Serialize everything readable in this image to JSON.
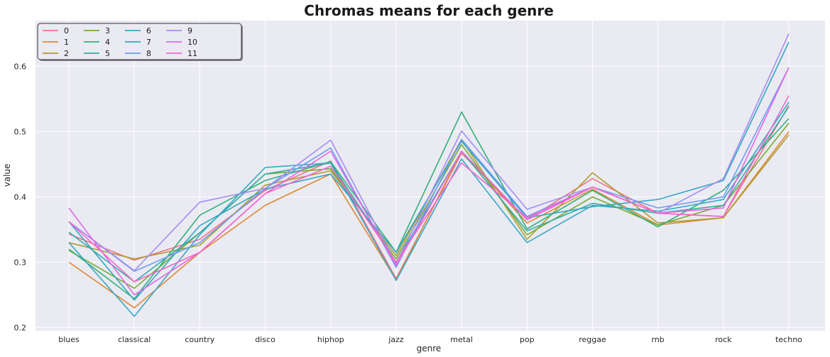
{
  "chart_data": {
    "type": "line",
    "title": "Chromas means for each genre",
    "xlabel": "genre",
    "ylabel": "value",
    "categories": [
      "blues",
      "classical",
      "country",
      "disco",
      "hiphop",
      "jazz",
      "metal",
      "pop",
      "reggae",
      "rnb",
      "rock",
      "techno"
    ],
    "yticks": [
      0.2,
      0.3,
      0.4,
      0.5,
      0.6
    ],
    "ylim": [
      0.195,
      0.67
    ],
    "grid": true,
    "legend_position": "top-left",
    "legend_columns": 5,
    "series": [
      {
        "name": "0",
        "color": "#f77189",
        "values": [
          0.343,
          0.303,
          0.335,
          0.41,
          0.455,
          0.275,
          0.467,
          0.365,
          0.428,
          0.375,
          0.37,
          0.54
        ]
      },
      {
        "name": "1",
        "color": "#dc8932",
        "values": [
          0.3,
          0.23,
          0.315,
          0.387,
          0.435,
          0.273,
          0.47,
          0.36,
          0.412,
          0.357,
          0.368,
          0.5
        ]
      },
      {
        "name": "2",
        "color": "#ae9d31",
        "values": [
          0.33,
          0.305,
          0.326,
          0.418,
          0.44,
          0.31,
          0.488,
          0.335,
          0.437,
          0.36,
          0.368,
          0.495
        ]
      },
      {
        "name": "3",
        "color": "#77ab31",
        "values": [
          0.318,
          0.26,
          0.345,
          0.435,
          0.443,
          0.305,
          0.48,
          0.342,
          0.4,
          0.357,
          0.387,
          0.513
        ]
      },
      {
        "name": "4",
        "color": "#33b07a",
        "values": [
          0.32,
          0.244,
          0.372,
          0.425,
          0.454,
          0.315,
          0.53,
          0.351,
          0.41,
          0.354,
          0.41,
          0.52
        ]
      },
      {
        "name": "5",
        "color": "#36ada4",
        "values": [
          0.346,
          0.27,
          0.345,
          0.435,
          0.452,
          0.3,
          0.47,
          0.348,
          0.39,
          0.375,
          0.387,
          0.538
        ]
      },
      {
        "name": "6",
        "color": "#38a9c5",
        "values": [
          0.33,
          0.217,
          0.342,
          0.445,
          0.452,
          0.272,
          0.458,
          0.33,
          0.387,
          0.378,
          0.396,
          0.545
        ]
      },
      {
        "name": "7",
        "color": "#34a7c0",
        "values": [
          0.362,
          0.242,
          0.356,
          0.412,
          0.435,
          0.315,
          0.485,
          0.368,
          0.385,
          0.396,
          0.425,
          0.637
        ]
      },
      {
        "name": "8",
        "color": "#6e9bf4",
        "values": [
          0.362,
          0.286,
          0.33,
          0.413,
          0.475,
          0.292,
          0.488,
          0.37,
          0.415,
          0.383,
          0.4,
          0.598
        ]
      },
      {
        "name": "9",
        "color": "#a48cf4",
        "values": [
          0.362,
          0.287,
          0.392,
          0.413,
          0.487,
          0.298,
          0.501,
          0.381,
          0.415,
          0.375,
          0.428,
          0.65
        ]
      },
      {
        "name": "10",
        "color": "#e168e6",
        "values": [
          0.383,
          0.25,
          0.315,
          0.405,
          0.47,
          0.295,
          0.47,
          0.365,
          0.415,
          0.375,
          0.383,
          0.598
        ]
      },
      {
        "name": "11",
        "color": "#f565cc",
        "values": [
          0.362,
          0.27,
          0.315,
          0.405,
          0.447,
          0.3,
          0.452,
          0.368,
          0.415,
          0.375,
          0.37,
          0.555
        ]
      }
    ]
  }
}
